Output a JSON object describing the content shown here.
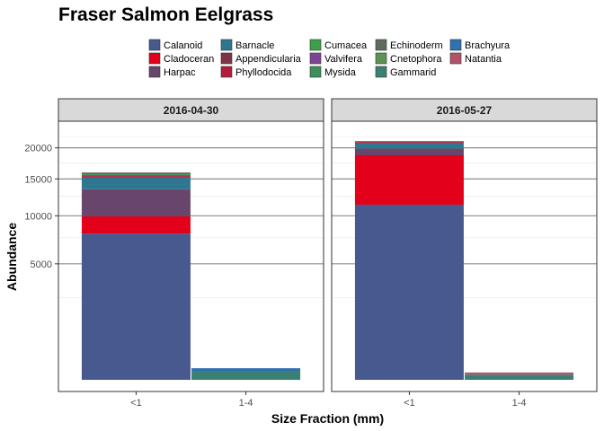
{
  "chart_data": {
    "type": "bar",
    "stacked": true,
    "title": "Fraser Salmon Eelgrass",
    "xlabel": "Size Fraction (mm)",
    "ylabel": "Abundance",
    "y_scale": "sqrt",
    "ylim": [
      0,
      24000
    ],
    "y_ticks": [
      5000,
      10000,
      15000,
      20000
    ],
    "y_tick_labels": [
      "5000",
      "10000",
      "15000",
      "20000"
    ],
    "grid": true,
    "legend_position": "top",
    "categories": [
      "<1",
      "1-4"
    ],
    "series": [
      {
        "name": "Calanoid",
        "color": "#47598E"
      },
      {
        "name": "Cladoceran",
        "color": "#E3001B"
      },
      {
        "name": "Harpac",
        "color": "#68466B"
      },
      {
        "name": "Barnacle",
        "color": "#2F7791"
      },
      {
        "name": "Appendicularia",
        "color": "#7F3349"
      },
      {
        "name": "Phyllodocida",
        "color": "#B51B3A"
      },
      {
        "name": "Cumacea",
        "color": "#3CA04A"
      },
      {
        "name": "Valvifera",
        "color": "#7F4394"
      },
      {
        "name": "Mysida",
        "color": "#3E8F5E"
      },
      {
        "name": "Echinoderm",
        "color": "#5C6E5A"
      },
      {
        "name": "Cnetophora",
        "color": "#5E9254"
      },
      {
        "name": "Gammarid",
        "color": "#3A8173"
      },
      {
        "name": "Brachyura",
        "color": "#3070B3"
      },
      {
        "name": "Natantia",
        "color": "#B0536B"
      }
    ],
    "panels": [
      {
        "label": "2016-04-30",
        "stacks": [
          {
            "category": "<1",
            "values": {
              "Calanoid": 7950,
              "Cladoceran": 1980,
              "Harpac": 3560,
              "Barnacle": 1800,
              "Appendicularia": 30,
              "Phyllodocida": 240,
              "Cumacea": 150,
              "Valvifera": 125,
              "Mysida": 40,
              "Echinoderm": 10,
              "Cnetophora": 10,
              "Gammarid": 60,
              "Brachyura": 5,
              "Natantia": 5
            }
          },
          {
            "category": "1-4",
            "values": {
              "Calanoid": 0,
              "Cladoceran": 0,
              "Harpac": 0,
              "Barnacle": 0,
              "Appendicularia": 0,
              "Phyllodocida": 0,
              "Cumacea": 0,
              "Valvifera": 0,
              "Mysida": 0,
              "Echinoderm": 0,
              "Cnetophora": 0,
              "Gammarid": 30,
              "Brachyura": 20,
              "Natantia": 0
            }
          }
        ]
      },
      {
        "label": "2016-05-27",
        "stacks": [
          {
            "category": "<1",
            "values": {
              "Calanoid": 11400,
              "Cladoceran": 7330,
              "Harpac": 1150,
              "Barnacle": 870,
              "Appendicularia": 0,
              "Phyllodocida": 270,
              "Cumacea": 0,
              "Valvifera": 0,
              "Mysida": 70,
              "Echinoderm": 0,
              "Cnetophora": 40,
              "Gammarid": 30,
              "Brachyura": 15,
              "Natantia": 0
            }
          },
          {
            "category": "1-4",
            "values": {
              "Calanoid": 0,
              "Cladoceran": 0,
              "Harpac": 0,
              "Barnacle": 0,
              "Appendicularia": 0,
              "Phyllodocida": 0,
              "Cumacea": 0,
              "Valvifera": 0,
              "Mysida": 0,
              "Echinoderm": 0,
              "Cnetophora": 0,
              "Gammarid": 10,
              "Brachyura": 0,
              "Natantia": 10
            }
          }
        ]
      }
    ]
  }
}
